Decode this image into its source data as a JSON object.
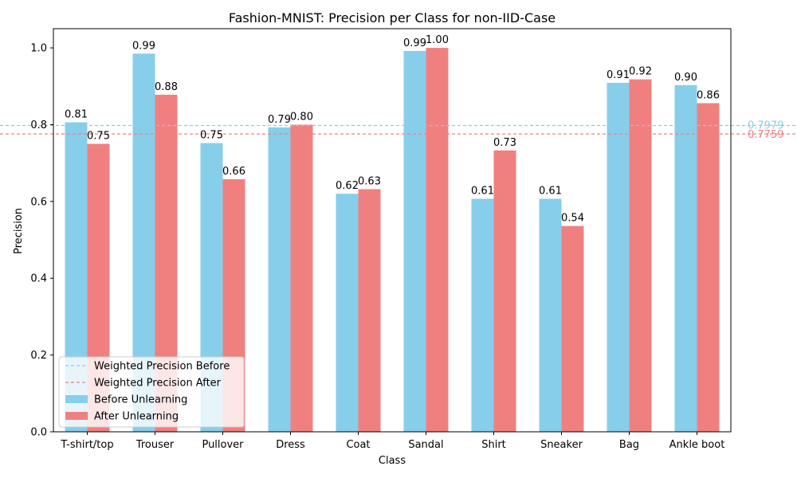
{
  "chart_data": {
    "type": "bar",
    "title": "Fashion-MNIST: Precision per Class for non-IID-Case",
    "xlabel": "Class",
    "ylabel": "Precision",
    "ylim": [
      0,
      1.05
    ],
    "yticks": [
      "0.0",
      "0.2",
      "0.4",
      "0.6",
      "0.8",
      "1.0"
    ],
    "categories": [
      "T-shirt/top",
      "Trouser",
      "Pullover",
      "Dress",
      "Coat",
      "Sandal",
      "Shirt",
      "Sneaker",
      "Bag",
      "Ankle boot"
    ],
    "series": [
      {
        "name": "Before Unlearning",
        "color": "#87ceeb",
        "values": [
          0.806,
          0.985,
          0.752,
          0.793,
          0.62,
          0.992,
          0.607,
          0.607,
          0.909,
          0.903
        ],
        "labels": [
          "0.81",
          "0.99",
          "0.75",
          "0.79",
          "0.62",
          "0.99",
          "0.61",
          "0.61",
          "0.91",
          "0.90"
        ]
      },
      {
        "name": "After Unlearning",
        "color": "#f08080",
        "values": [
          0.75,
          0.878,
          0.658,
          0.8,
          0.632,
          1.0,
          0.733,
          0.536,
          0.918,
          0.856
        ],
        "labels": [
          "0.75",
          "0.88",
          "0.66",
          "0.80",
          "0.63",
          "1.00",
          "0.73",
          "0.54",
          "0.92",
          "0.86"
        ]
      }
    ],
    "reference_lines": [
      {
        "name": "Weighted Precision Before",
        "value": 0.7979,
        "label": "0.7979",
        "color": "#87ceeb"
      },
      {
        "name": "Weighted Precision After",
        "value": 0.7759,
        "label": "0.7759",
        "color": "#f08080"
      }
    ],
    "legend_position": "lower-left",
    "grid": false
  }
}
